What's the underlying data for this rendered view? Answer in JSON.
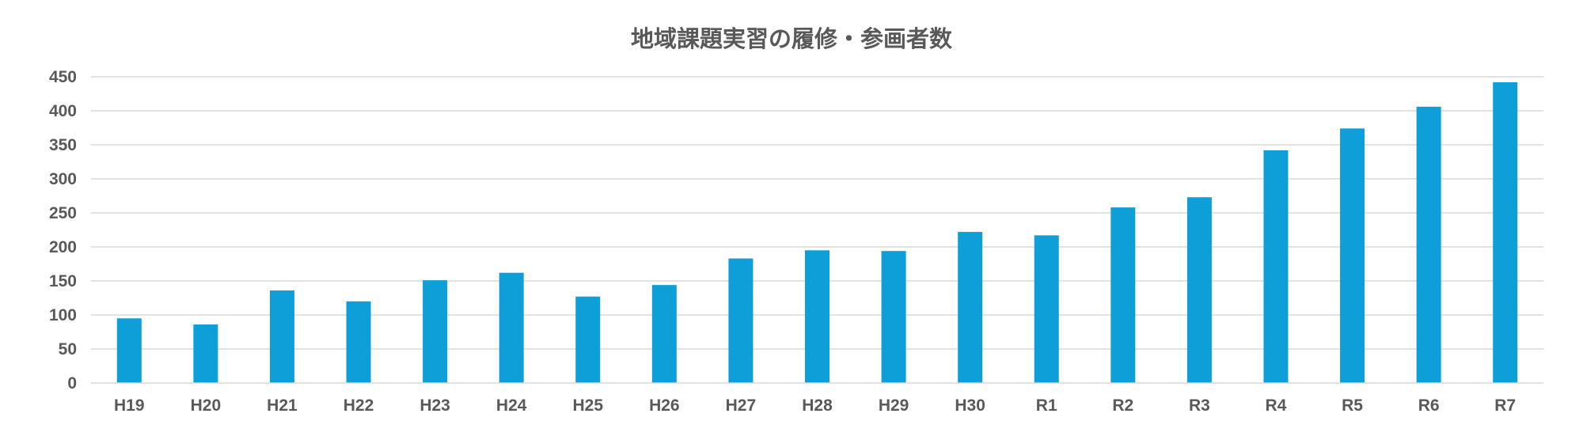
{
  "chart_data": {
    "type": "bar",
    "title": "地域課題実習の履修・参画者数",
    "xlabel": "",
    "ylabel": "",
    "categories": [
      "H19",
      "H20",
      "H21",
      "H22",
      "H23",
      "H24",
      "H25",
      "H26",
      "H27",
      "H28",
      "H29",
      "H30",
      "R1",
      "R2",
      "R3",
      "R4",
      "R5",
      "R6",
      "R7"
    ],
    "values": [
      95,
      86,
      136,
      120,
      151,
      162,
      127,
      144,
      183,
      195,
      194,
      222,
      217,
      258,
      273,
      342,
      374,
      406,
      442
    ],
    "ylim": [
      0,
      450
    ],
    "yticks": [
      "0",
      "50",
      "100",
      "150",
      "200",
      "250",
      "300",
      "350",
      "400",
      "450"
    ],
    "grid": true,
    "legend": "none",
    "bar_color": "#0f9fd8"
  }
}
